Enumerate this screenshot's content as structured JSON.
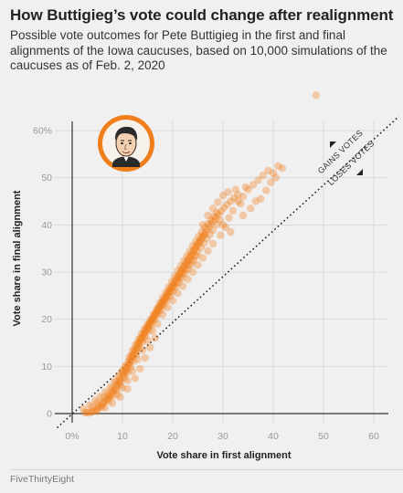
{
  "header": {
    "title": "How Buttigieg’s vote could change after realignment",
    "subtitle": "Possible vote outcomes for Pete Buttigieg in the first and final alignments of the Iowa caucuses, based on 10,000 simulations of the caucuses as of Feb. 2, 2020"
  },
  "footer": {
    "source": "FiveThirtyEight"
  },
  "colors": {
    "points": "#f07e1b",
    "background": "#f0f0f0",
    "portrait_ring": "#f07e1b"
  },
  "portrait": {
    "icon": "candidate-portrait-icon"
  },
  "chart_data": {
    "type": "scatter",
    "xlabel": "Vote share in first alignment",
    "ylabel": "Vote share in final alignment",
    "xlim": [
      0,
      60
    ],
    "ylim": [
      0,
      65
    ],
    "x_ticks": [
      {
        "v": 0,
        "label": "0%"
      },
      {
        "v": 10,
        "label": "10"
      },
      {
        "v": 20,
        "label": "20"
      },
      {
        "v": 30,
        "label": "30"
      },
      {
        "v": 40,
        "label": "40"
      },
      {
        "v": 50,
        "label": "50"
      },
      {
        "v": 60,
        "label": "60"
      }
    ],
    "y_ticks": [
      {
        "v": 0,
        "label": "0"
      },
      {
        "v": 10,
        "label": "10"
      },
      {
        "v": 20,
        "label": "20"
      },
      {
        "v": 30,
        "label": "30"
      },
      {
        "v": 40,
        "label": "40"
      },
      {
        "v": 50,
        "label": "50"
      },
      {
        "v": 60,
        "label": "60%"
      }
    ],
    "reference_line": {
      "from": [
        -3,
        -3
      ],
      "to": [
        65,
        63
      ]
    },
    "annotations": {
      "above": "GAINS VOTES",
      "below": "LOSES VOTES"
    },
    "points": [
      [
        2.5,
        0.2
      ],
      [
        3.0,
        0.3
      ],
      [
        3.8,
        0.3
      ],
      [
        4.5,
        0.6
      ],
      [
        4.9,
        1.0
      ],
      [
        5.5,
        1.3
      ],
      [
        5.9,
        2.0
      ],
      [
        6.4,
        2.5
      ],
      [
        6.8,
        2.9
      ],
      [
        7.3,
        3.4
      ],
      [
        7.7,
        4.0
      ],
      [
        8.1,
        4.6
      ],
      [
        8.5,
        5.2
      ],
      [
        8.9,
        5.8
      ],
      [
        9.3,
        6.5
      ],
      [
        9.7,
        7.3
      ],
      [
        10.1,
        8.0
      ],
      [
        10.5,
        8.8
      ],
      [
        10.9,
        9.6
      ],
      [
        11.3,
        10.5
      ],
      [
        11.7,
        11.4
      ],
      [
        12.1,
        12.3
      ],
      [
        12.5,
        13.1
      ],
      [
        12.9,
        14.0
      ],
      [
        13.3,
        14.9
      ],
      [
        13.7,
        15.7
      ],
      [
        14.1,
        16.5
      ],
      [
        14.5,
        17.3
      ],
      [
        14.9,
        18.0
      ],
      [
        15.3,
        18.8
      ],
      [
        15.7,
        19.6
      ],
      [
        16.1,
        20.3
      ],
      [
        16.5,
        21.1
      ],
      [
        16.9,
        21.8
      ],
      [
        17.3,
        22.5
      ],
      [
        17.7,
        23.2
      ],
      [
        18.1,
        23.9
      ],
      [
        18.5,
        24.6
      ],
      [
        18.9,
        25.3
      ],
      [
        19.3,
        26.0
      ],
      [
        19.7,
        26.7
      ],
      [
        20.1,
        27.4
      ],
      [
        20.5,
        28.1
      ],
      [
        20.9,
        28.8
      ],
      [
        21.3,
        29.5
      ],
      [
        21.7,
        30.2
      ],
      [
        22.1,
        30.9
      ],
      [
        22.5,
        31.6
      ],
      [
        22.9,
        32.3
      ],
      [
        23.3,
        33.0
      ],
      [
        23.7,
        33.7
      ],
      [
        24.1,
        34.4
      ],
      [
        24.5,
        35.1
      ],
      [
        24.9,
        35.8
      ],
      [
        25.3,
        36.4
      ],
      [
        25.7,
        37.1
      ],
      [
        26.1,
        37.7
      ],
      [
        26.5,
        38.4
      ],
      [
        26.9,
        39.0
      ],
      [
        27.3,
        39.6
      ],
      [
        27.7,
        40.3
      ],
      [
        28.1,
        40.9
      ],
      [
        28.6,
        41.5
      ],
      [
        29.1,
        42.2
      ],
      [
        29.6,
        42.9
      ],
      [
        30.2,
        43.6
      ],
      [
        30.8,
        44.3
      ],
      [
        31.5,
        45.0
      ],
      [
        32.2,
        45.7
      ],
      [
        33.0,
        46.4
      ],
      [
        3.2,
        0.1
      ],
      [
        4.1,
        0.4
      ],
      [
        5.2,
        1.6
      ],
      [
        6.1,
        2.1
      ],
      [
        7.0,
        3.1
      ],
      [
        7.5,
        3.8
      ],
      [
        8.3,
        4.9
      ],
      [
        9.0,
        6.2
      ],
      [
        9.5,
        6.8
      ],
      [
        10.3,
        8.4
      ],
      [
        10.7,
        9.2
      ],
      [
        11.1,
        10.1
      ],
      [
        11.5,
        11.0
      ],
      [
        11.9,
        11.9
      ],
      [
        12.3,
        12.7
      ],
      [
        12.7,
        13.5
      ],
      [
        13.1,
        14.5
      ],
      [
        13.5,
        15.3
      ],
      [
        13.9,
        16.1
      ],
      [
        14.3,
        16.9
      ],
      [
        14.7,
        17.7
      ],
      [
        15.1,
        18.4
      ],
      [
        15.5,
        19.2
      ],
      [
        15.9,
        19.9
      ],
      [
        16.3,
        20.7
      ],
      [
        16.7,
        21.4
      ],
      [
        17.1,
        22.1
      ],
      [
        17.5,
        22.8
      ],
      [
        17.9,
        23.6
      ],
      [
        18.3,
        24.2
      ],
      [
        18.7,
        24.9
      ],
      [
        19.1,
        25.6
      ],
      [
        19.5,
        26.3
      ],
      [
        19.9,
        27.0
      ],
      [
        20.3,
        27.7
      ],
      [
        20.7,
        28.4
      ],
      [
        21.1,
        29.1
      ],
      [
        21.5,
        29.8
      ],
      [
        21.9,
        30.5
      ],
      [
        22.3,
        31.2
      ],
      [
        22.7,
        31.9
      ],
      [
        23.1,
        32.6
      ],
      [
        23.5,
        33.3
      ],
      [
        23.9,
        34.0
      ],
      [
        24.3,
        34.7
      ],
      [
        24.7,
        35.4
      ],
      [
        25.1,
        36.1
      ],
      [
        25.5,
        36.7
      ],
      [
        25.9,
        37.4
      ],
      [
        26.3,
        38.0
      ],
      [
        4.0,
        1.4
      ],
      [
        5.0,
        2.3
      ],
      [
        6.2,
        3.4
      ],
      [
        7.1,
        4.2
      ],
      [
        7.9,
        5.3
      ],
      [
        8.7,
        6.6
      ],
      [
        9.4,
        7.6
      ],
      [
        10.0,
        8.9
      ],
      [
        10.6,
        9.9
      ],
      [
        11.2,
        11.2
      ],
      [
        11.8,
        12.4
      ],
      [
        12.4,
        13.6
      ],
      [
        13.0,
        14.8
      ],
      [
        13.6,
        15.9
      ],
      [
        14.2,
        17.0
      ],
      [
        14.8,
        18.1
      ],
      [
        15.4,
        19.1
      ],
      [
        16.0,
        20.1
      ],
      [
        16.6,
        21.1
      ],
      [
        17.2,
        22.1
      ],
      [
        17.8,
        23.0
      ],
      [
        18.4,
        24.0
      ],
      [
        19.0,
        24.9
      ],
      [
        19.6,
        25.9
      ],
      [
        20.2,
        26.8
      ],
      [
        20.8,
        27.8
      ],
      [
        21.4,
        28.7
      ],
      [
        22.0,
        29.6
      ],
      [
        22.6,
        30.6
      ],
      [
        23.2,
        31.5
      ],
      [
        23.8,
        32.4
      ],
      [
        24.4,
        33.4
      ],
      [
        25.0,
        34.3
      ],
      [
        25.6,
        35.2
      ],
      [
        26.2,
        36.1
      ],
      [
        26.8,
        37.1
      ],
      [
        27.4,
        38.0
      ],
      [
        28.0,
        38.9
      ],
      [
        28.8,
        40.1
      ],
      [
        29.4,
        41.0
      ],
      [
        6.0,
        1.5
      ],
      [
        7.2,
        2.6
      ],
      [
        8.0,
        3.6
      ],
      [
        8.8,
        4.8
      ],
      [
        9.6,
        6.0
      ],
      [
        10.4,
        7.5
      ],
      [
        11.0,
        8.6
      ],
      [
        11.6,
        9.8
      ],
      [
        12.2,
        11.1
      ],
      [
        12.8,
        12.5
      ],
      [
        13.4,
        13.9
      ],
      [
        14.0,
        15.2
      ],
      [
        14.6,
        16.4
      ],
      [
        15.2,
        17.6
      ],
      [
        15.8,
        18.7
      ],
      [
        16.4,
        19.8
      ],
      [
        17.0,
        20.9
      ],
      [
        17.6,
        21.9
      ],
      [
        18.2,
        22.9
      ],
      [
        18.8,
        23.9
      ],
      [
        19.4,
        24.9
      ],
      [
        20.0,
        25.8
      ],
      [
        20.6,
        26.8
      ],
      [
        21.2,
        27.8
      ],
      [
        21.8,
        28.7
      ],
      [
        22.4,
        29.7
      ],
      [
        23.0,
        30.6
      ],
      [
        23.6,
        31.6
      ],
      [
        24.2,
        32.5
      ],
      [
        24.8,
        33.5
      ],
      [
        2.2,
        1.0
      ],
      [
        3.5,
        1.8
      ],
      [
        4.6,
        2.8
      ],
      [
        5.6,
        3.6
      ],
      [
        6.6,
        4.6
      ],
      [
        7.6,
        5.6
      ],
      [
        8.4,
        6.8
      ],
      [
        9.2,
        8.0
      ],
      [
        9.9,
        9.0
      ],
      [
        10.6,
        10.2
      ],
      [
        11.4,
        12.0
      ],
      [
        12.0,
        13.4
      ],
      [
        12.6,
        14.6
      ],
      [
        13.2,
        15.8
      ],
      [
        13.8,
        17.0
      ],
      [
        14.4,
        18.0
      ],
      [
        15.0,
        19.0
      ],
      [
        15.6,
        20.0
      ],
      [
        16.2,
        21.1
      ],
      [
        16.8,
        22.3
      ],
      [
        17.4,
        23.4
      ],
      [
        18.0,
        24.6
      ],
      [
        18.6,
        25.7
      ],
      [
        19.2,
        26.8
      ],
      [
        19.8,
        28.0
      ],
      [
        20.4,
        29.1
      ],
      [
        21.0,
        30.3
      ],
      [
        21.6,
        31.3
      ],
      [
        22.2,
        32.4
      ],
      [
        22.8,
        33.4
      ],
      [
        23.4,
        34.5
      ],
      [
        24.0,
        35.6
      ],
      [
        24.6,
        36.6
      ],
      [
        25.2,
        37.6
      ],
      [
        25.8,
        38.5
      ],
      [
        26.4,
        39.4
      ],
      [
        27.0,
        40.2
      ],
      [
        27.6,
        41.0
      ],
      [
        28.2,
        41.8
      ],
      [
        28.8,
        42.6
      ],
      [
        9.0,
        4.0
      ],
      [
        10.0,
        5.5
      ],
      [
        11.0,
        7.0
      ],
      [
        12.0,
        9.0
      ],
      [
        13.0,
        11.5
      ],
      [
        14.0,
        13.5
      ],
      [
        15.0,
        15.5
      ],
      [
        16.0,
        17.5
      ],
      [
        17.0,
        19.0
      ],
      [
        18.0,
        21.0
      ],
      [
        19.0,
        22.5
      ],
      [
        20.0,
        24.0
      ],
      [
        21.0,
        25.5
      ],
      [
        22.0,
        27.0
      ],
      [
        23.0,
        28.5
      ],
      [
        24.0,
        30.0
      ],
      [
        25.0,
        31.5
      ],
      [
        26.0,
        33.0
      ],
      [
        27.0,
        34.5
      ],
      [
        28.0,
        36.0
      ],
      [
        29.5,
        37.8
      ],
      [
        30.5,
        39.5
      ],
      [
        31.2,
        41.5
      ],
      [
        32.0,
        43.0
      ],
      [
        33.5,
        44.5
      ],
      [
        34.0,
        46.0
      ],
      [
        35.0,
        47.5
      ],
      [
        36.0,
        48.5
      ],
      [
        36.5,
        45.0
      ],
      [
        35.5,
        43.5
      ],
      [
        32.5,
        47.5
      ],
      [
        37.0,
        49.5
      ],
      [
        38.0,
        50.5
      ],
      [
        39.0,
        51.5
      ],
      [
        40.0,
        51.0
      ],
      [
        41.0,
        52.5
      ],
      [
        40.5,
        50.0
      ],
      [
        39.5,
        49.0
      ],
      [
        37.5,
        45.5
      ],
      [
        34.5,
        48.0
      ],
      [
        5.0,
        0.5
      ],
      [
        6.5,
        1.2
      ],
      [
        8.0,
        2.2
      ],
      [
        9.5,
        3.5
      ],
      [
        11.0,
        5.2
      ],
      [
        12.5,
        7.5
      ],
      [
        13.5,
        9.5
      ],
      [
        14.5,
        11.8
      ],
      [
        15.5,
        14.0
      ],
      [
        16.5,
        16.0
      ],
      [
        26.0,
        40.0
      ],
      [
        27.0,
        42.0
      ],
      [
        28.0,
        43.5
      ],
      [
        29.0,
        44.8
      ],
      [
        30.0,
        46.2
      ],
      [
        31.0,
        47.0
      ],
      [
        33.0,
        45.0
      ],
      [
        34.0,
        42.0
      ],
      [
        30.0,
        40.0
      ],
      [
        31.5,
        38.5
      ],
      [
        48.5,
        67.5
      ],
      [
        41.8,
        52.0
      ],
      [
        38.6,
        47.3
      ]
    ]
  }
}
